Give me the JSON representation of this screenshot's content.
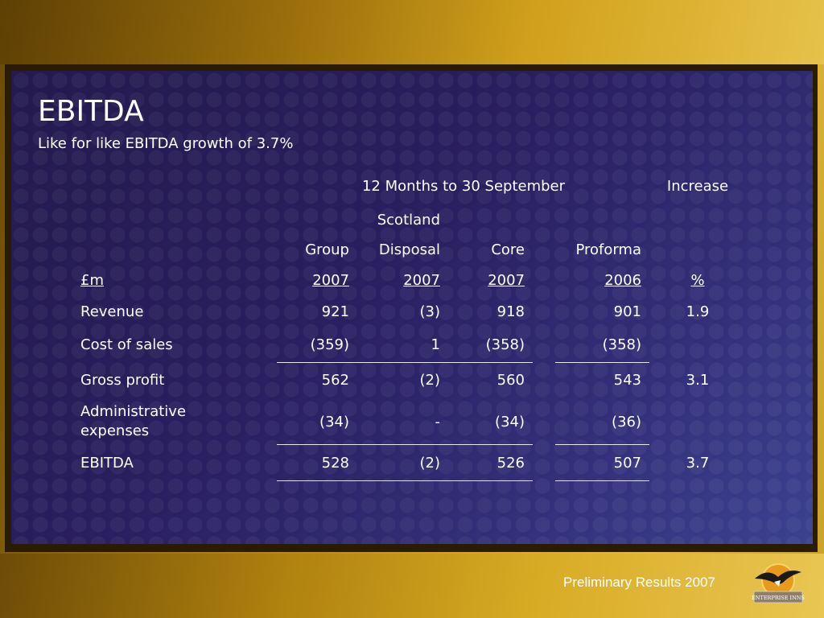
{
  "slide": {
    "title": "EBITDA",
    "subtitle": "Like for like EBITDA growth of 3.7%",
    "footer": "Preliminary Results 2007",
    "logo_text": "ENTERPRISE INNS"
  },
  "table": {
    "period_header": "12 Months to 30 September",
    "increase_header": "Increase",
    "columns": {
      "group": "Group",
      "disposal_line1": "Scotland",
      "disposal_line2": "Disposal",
      "core": "Core",
      "proforma": "Proforma"
    },
    "units_row": {
      "label": "£m",
      "group": "2007",
      "disposal": "2007",
      "core": "2007",
      "proforma": "2006",
      "increase": "%"
    },
    "rows": [
      {
        "label": "Revenue",
        "group": "921",
        "disposal": "(3)",
        "core": "918",
        "proforma": "901",
        "increase": "1.9"
      },
      {
        "label": "Cost of sales",
        "group": "(359)",
        "disposal": "1",
        "core": "(358)",
        "proforma": "(358)",
        "increase": ""
      },
      {
        "label": "Gross profit",
        "group": "562",
        "disposal": "(2)",
        "core": "560",
        "proforma": "543",
        "increase": "3.1"
      },
      {
        "label_line1": "Administrative",
        "label_line2": "expenses",
        "group": "(34)",
        "disposal": "-",
        "core": "(34)",
        "proforma": "(36)",
        "increase": ""
      },
      {
        "label": "EBITDA",
        "group": "528",
        "disposal": "(2)",
        "core": "526",
        "proforma": "507",
        "increase": "3.7"
      }
    ]
  },
  "colors": {
    "panel_background": "#2a1f60",
    "frame_gold": "#d5a51f",
    "text": "#ffffff"
  }
}
